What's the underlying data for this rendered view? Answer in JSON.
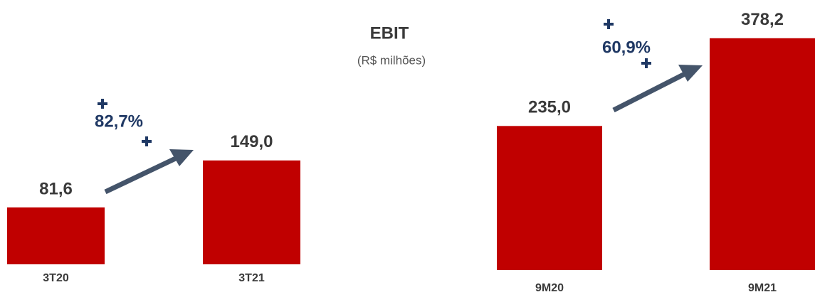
{
  "header": {
    "title": "EBIT",
    "subtitle": "(R$ milhões)"
  },
  "chart_data": [
    {
      "type": "bar",
      "categories": [
        "3T20",
        "3T21"
      ],
      "values": [
        81.6,
        149.0
      ],
      "value_labels": [
        "81,6",
        "149,0"
      ],
      "color": "#c00000",
      "ylim": [
        0,
        160
      ],
      "annotation": "82,7%"
    },
    {
      "type": "bar",
      "categories": [
        "9M20",
        "9M21"
      ],
      "values": [
        235.0,
        378.2
      ],
      "value_labels": [
        "235,0",
        "378,2"
      ],
      "color": "#c00000",
      "ylim": [
        0,
        400
      ],
      "annotation": "60,9%"
    }
  ]
}
